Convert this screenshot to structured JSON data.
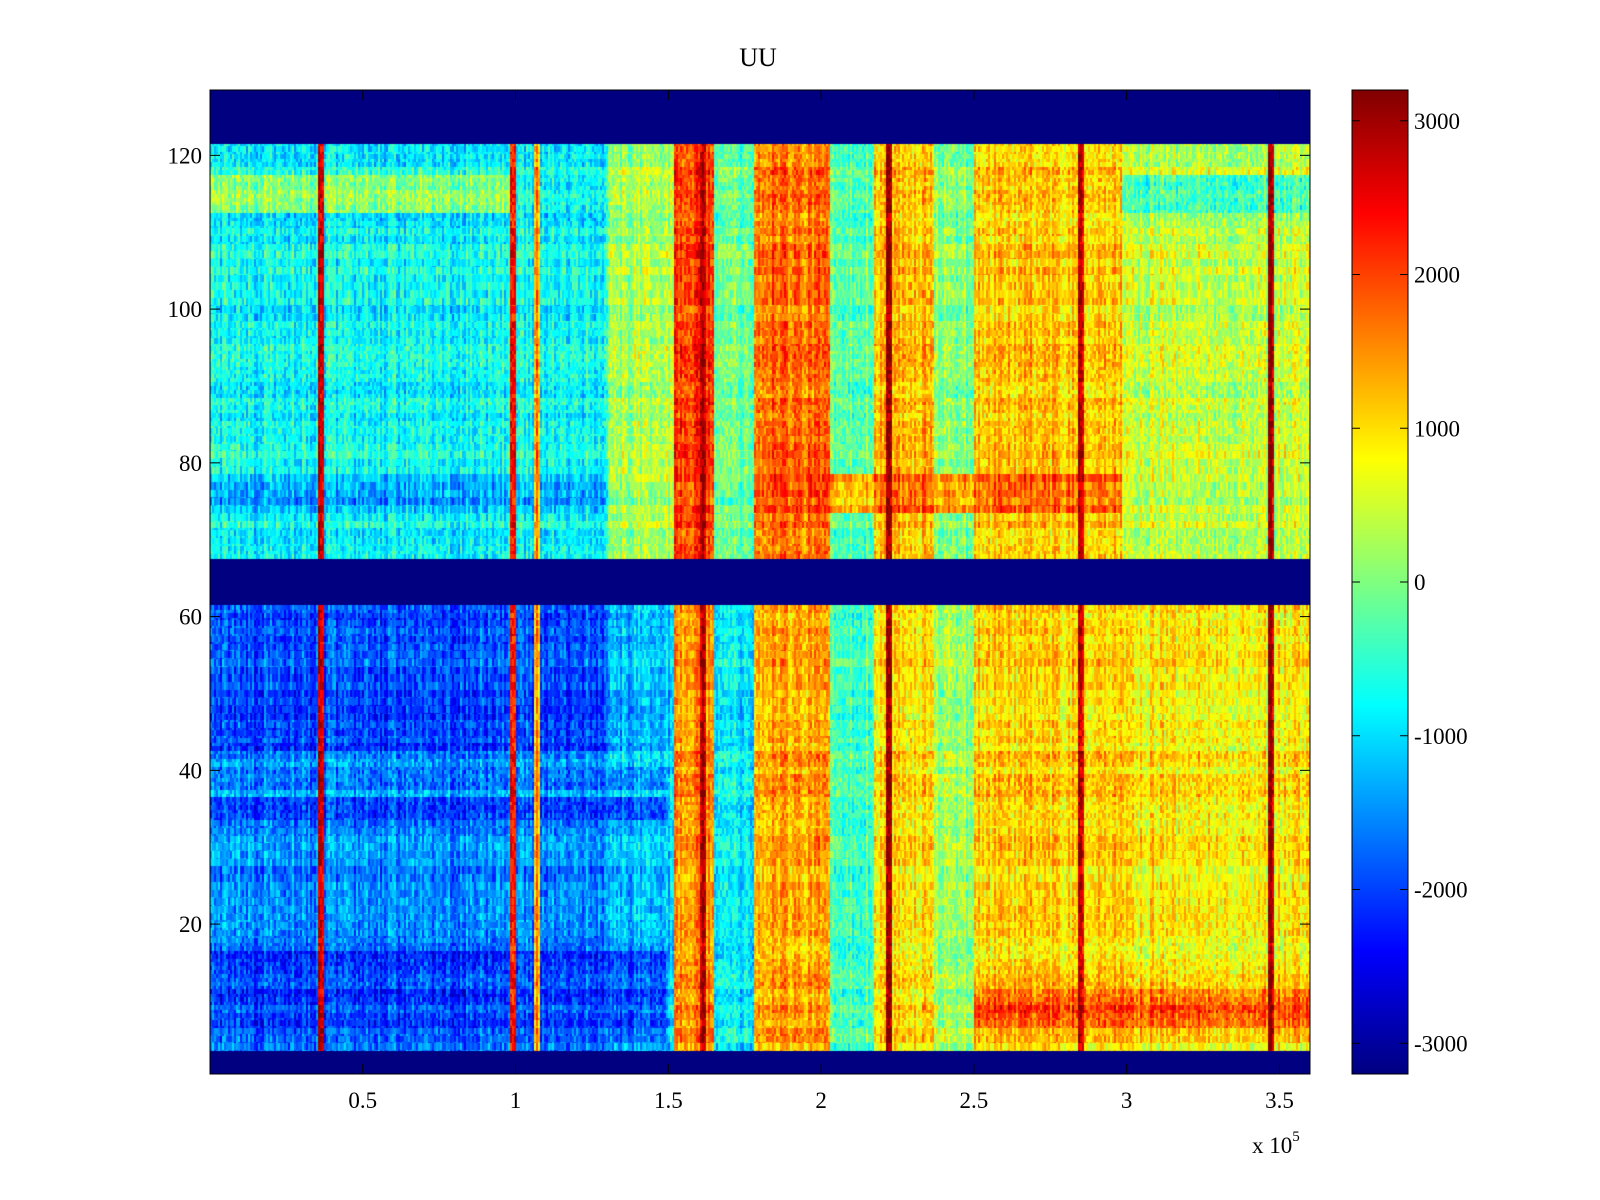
{
  "chart_data": {
    "type": "heatmap",
    "title": "UU",
    "xlabel": "",
    "ylabel": "",
    "xlim": [
      0,
      360000
    ],
    "ylim": [
      0.5,
      128.5
    ],
    "x_ticks": [
      50000,
      100000,
      150000,
      200000,
      250000,
      300000,
      350000
    ],
    "x_tick_labels": [
      "0.5",
      "1",
      "1.5",
      "2",
      "2.5",
      "3",
      "3.5"
    ],
    "x_multiplier": {
      "base": "x 10",
      "exponent": "5"
    },
    "y_ticks": [
      20,
      40,
      60,
      80,
      100,
      120
    ],
    "y_tick_labels": [
      "20",
      "40",
      "60",
      "80",
      "100",
      "120"
    ],
    "colormap": "jet",
    "colorbar": {
      "range": [
        -3200,
        3200
      ],
      "ticks": [
        -3000,
        -2000,
        -1000,
        0,
        1000,
        2000,
        3000
      ],
      "tick_labels": [
        "-3000",
        "-2000",
        "-1000",
        "0",
        "1000",
        "2000",
        "3000"
      ],
      "placement": "right"
    },
    "masked_rows": [
      [
        1,
        3
      ],
      [
        62,
        67
      ],
      [
        122,
        128
      ]
    ],
    "masked_value": -3200,
    "x_segments": [
      {
        "x_start": 0,
        "x_end": 130000,
        "upper_mean": -800,
        "lower_mean": -1500
      },
      {
        "x_start": 130000,
        "x_end": 152000,
        "upper_mean": 200,
        "lower_mean": -1200
      },
      {
        "x_start": 152000,
        "x_end": 165000,
        "upper_mean": 2000,
        "lower_mean": 1500
      },
      {
        "x_start": 165000,
        "x_end": 178000,
        "upper_mean": -200,
        "lower_mean": -900
      },
      {
        "x_start": 178000,
        "x_end": 203000,
        "upper_mean": 1700,
        "lower_mean": 1400
      },
      {
        "x_start": 203000,
        "x_end": 217000,
        "upper_mean": -200,
        "lower_mean": -300
      },
      {
        "x_start": 217000,
        "x_end": 237000,
        "upper_mean": 1200,
        "lower_mean": 1000
      },
      {
        "x_start": 237000,
        "x_end": 250000,
        "upper_mean": 0,
        "lower_mean": 200
      },
      {
        "x_start": 250000,
        "x_end": 298000,
        "upper_mean": 1100,
        "lower_mean": 1100
      },
      {
        "x_start": 298000,
        "x_end": 360000,
        "upper_mean": 400,
        "lower_mean": 900
      }
    ],
    "row_bands": [
      {
        "y_start": 113,
        "y_end": 117,
        "x_start": 0,
        "x_end": 100000,
        "value": 500
      },
      {
        "y_start": 113,
        "y_end": 117,
        "x_start": 298000,
        "x_end": 360000,
        "value": -900
      },
      {
        "y_start": 74,
        "y_end": 78,
        "x_start": 0,
        "x_end": 130000,
        "value": -1500
      },
      {
        "y_start": 74,
        "y_end": 78,
        "x_start": 178000,
        "x_end": 298000,
        "value": 2200
      },
      {
        "y_start": 42,
        "y_end": 61,
        "x_start": 0,
        "x_end": 130000,
        "value": -2100
      },
      {
        "y_start": 34,
        "y_end": 36,
        "x_start": 0,
        "x_end": 150000,
        "value": -2200
      },
      {
        "y_start": 38,
        "y_end": 39,
        "x_start": 0,
        "x_end": 150000,
        "value": -2000
      },
      {
        "y_start": 5,
        "y_end": 16,
        "x_start": 0,
        "x_end": 150000,
        "value": -2300
      },
      {
        "y_start": 7,
        "y_end": 11,
        "x_start": 250000,
        "x_end": 360000,
        "value": 2300
      }
    ],
    "vertical_streaks": [
      {
        "x": 36000,
        "value": 2800
      },
      {
        "x": 99000,
        "value": 2600
      },
      {
        "x": 107000,
        "value": 1600
      },
      {
        "x": 161000,
        "value": 3100
      },
      {
        "x": 222000,
        "value": 3100
      },
      {
        "x": 285000,
        "value": 3100
      },
      {
        "x": 347000,
        "value": 3100
      }
    ]
  }
}
